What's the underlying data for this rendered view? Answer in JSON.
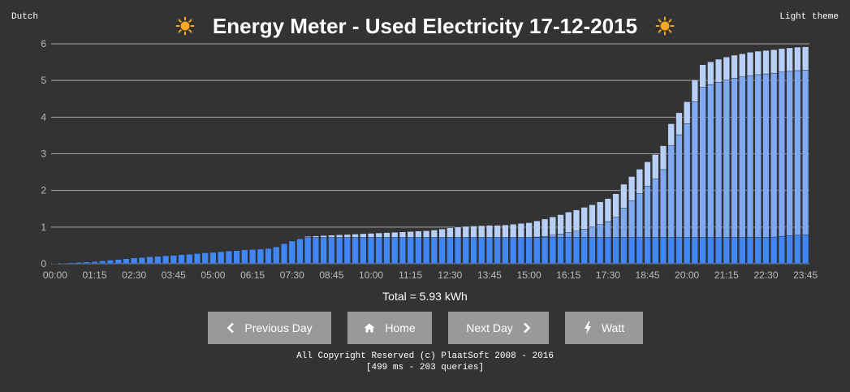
{
  "header": {
    "language_link": "Dutch",
    "theme_link": "Light theme",
    "title": "Energy Meter - Used Electricity 17-12-2015",
    "left_icon": "sun-icon",
    "right_icon": "sun-icon"
  },
  "summary": {
    "total": "Total = 5.93 kWh"
  },
  "buttons": {
    "previous": {
      "label": "Previous Day",
      "icon": "chevron-left-icon"
    },
    "home": {
      "label": "Home",
      "icon": "home-icon"
    },
    "next": {
      "label": "Next Day",
      "icon": "chevron-right-icon"
    },
    "watt": {
      "label": "Watt",
      "icon": "bolt-icon"
    }
  },
  "footer": {
    "copyright": "All Copyright Reserved (c) PlaatSoft 2008 - 2016",
    "stats": "[499 ms - 203 queries]"
  },
  "colors": {
    "background": "#333333",
    "series_low": "#4285f4",
    "series_normal": "#7fa9f0",
    "series_peak": "#b8d0f7",
    "grid": "#aaaaaa",
    "button": "#999999",
    "sun": "#f5a623"
  },
  "chart_data": {
    "type": "bar",
    "stacked": true,
    "interval_minutes": 15,
    "ylim": [
      0,
      6
    ],
    "yticks": [
      0,
      1,
      2,
      3,
      4,
      5,
      6
    ],
    "grid": true,
    "legend": "none",
    "xtick_labels": [
      "00:00",
      "01:15",
      "02:30",
      "03:45",
      "05:00",
      "06:15",
      "07:30",
      "08:45",
      "10:00",
      "11:15",
      "12:30",
      "13:45",
      "15:00",
      "16:15",
      "17:30",
      "18:45",
      "20:00",
      "21:15",
      "22:30",
      "23:45"
    ],
    "series": [
      {
        "values": [
          0.01,
          0.02,
          0.03,
          0.04,
          0.05,
          0.06,
          0.08,
          0.1,
          0.12,
          0.14,
          0.16,
          0.17,
          0.19,
          0.2,
          0.22,
          0.23,
          0.25,
          0.26,
          0.28,
          0.3,
          0.31,
          0.33,
          0.35,
          0.36,
          0.38,
          0.39,
          0.4,
          0.42,
          0.46,
          0.55,
          0.62,
          0.68,
          0.72,
          0.72,
          0.72,
          0.72,
          0.72,
          0.72,
          0.72,
          0.72,
          0.72,
          0.72,
          0.72,
          0.72,
          0.72,
          0.72,
          0.72,
          0.72,
          0.72,
          0.72,
          0.72,
          0.72,
          0.72,
          0.72,
          0.72,
          0.72,
          0.72,
          0.72,
          0.72,
          0.72,
          0.72,
          0.72,
          0.72,
          0.72,
          0.72,
          0.72,
          0.72,
          0.72,
          0.72,
          0.72,
          0.72,
          0.72,
          0.72,
          0.72,
          0.72,
          0.72,
          0.72,
          0.72,
          0.72,
          0.72,
          0.72,
          0.72,
          0.72,
          0.72,
          0.72,
          0.72,
          0.72,
          0.72,
          0.72,
          0.72,
          0.72,
          0.73,
          0.75,
          0.77,
          0.78,
          0.79
        ]
      },
      {
        "values": [
          0,
          0,
          0,
          0,
          0,
          0,
          0,
          0,
          0,
          0,
          0,
          0,
          0,
          0,
          0,
          0,
          0,
          0,
          0,
          0,
          0,
          0,
          0,
          0,
          0,
          0,
          0,
          0,
          0,
          0,
          0,
          0,
          0,
          0,
          0,
          0,
          0,
          0,
          0,
          0,
          0,
          0,
          0,
          0,
          0,
          0,
          0,
          0,
          0,
          0,
          0,
          0,
          0,
          0,
          0,
          0,
          0,
          0,
          0,
          0,
          0,
          0.01,
          0.03,
          0.06,
          0.09,
          0.13,
          0.17,
          0.22,
          0.28,
          0.35,
          0.43,
          0.55,
          0.8,
          1,
          1.2,
          1.4,
          1.6,
          1.85,
          2.5,
          2.8,
          3.1,
          3.7,
          4.1,
          4.17,
          4.23,
          4.29,
          4.34,
          4.38,
          4.41,
          4.44,
          4.46,
          4.47,
          4.48,
          4.48,
          4.49,
          4.49
        ]
      },
      {
        "values": [
          0,
          0,
          0,
          0,
          0,
          0,
          0,
          0,
          0,
          0,
          0,
          0,
          0,
          0,
          0,
          0,
          0,
          0,
          0,
          0,
          0,
          0,
          0,
          0,
          0,
          0,
          0,
          0,
          0,
          0,
          0,
          0,
          0.03,
          0.04,
          0.05,
          0.06,
          0.07,
          0.08,
          0.09,
          0.1,
          0.11,
          0.12,
          0.13,
          0.14,
          0.15,
          0.16,
          0.17,
          0.18,
          0.2,
          0.23,
          0.26,
          0.28,
          0.3,
          0.31,
          0.32,
          0.33,
          0.33,
          0.34,
          0.36,
          0.38,
          0.4,
          0.44,
          0.47,
          0.5,
          0.53,
          0.56,
          0.58,
          0.6,
          0.61,
          0.62,
          0.63,
          0.64,
          0.65,
          0.66,
          0.66,
          0.66,
          0.66,
          0.65,
          0.6,
          0.6,
          0.6,
          0.6,
          0.61,
          0.62,
          0.63,
          0.63,
          0.63,
          0.63,
          0.64,
          0.64,
          0.64,
          0.64,
          0.64,
          0.64,
          0.64,
          0.64
        ]
      }
    ]
  }
}
